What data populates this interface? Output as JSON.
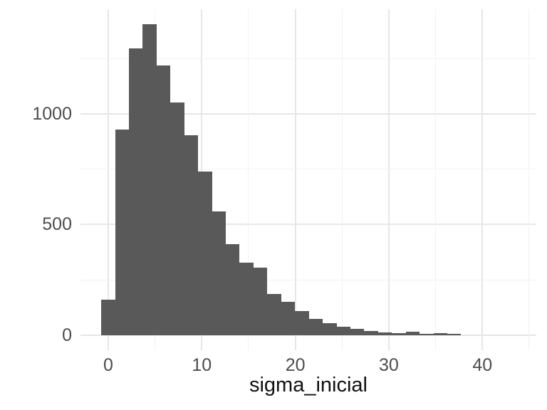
{
  "chart_data": {
    "type": "bar",
    "subtype": "histogram",
    "title": "",
    "xlabel": "sigma_inicial",
    "ylabel": "",
    "legend": "none",
    "grid": "on",
    "bar_color": "#595959",
    "background_color": "#ffffff",
    "grid_major_color": "#e6e6e6",
    "grid_minor_color": "#f2f2f2",
    "axis_text_color": "#4d4d4d",
    "axis_title_color": "#111111",
    "x_tick_labels": [
      "0",
      "10",
      "20",
      "30",
      "40"
    ],
    "x_ticks": [
      0,
      10,
      20,
      30,
      40
    ],
    "x_minor_ticks": [
      5,
      15,
      25,
      35,
      45
    ],
    "y_tick_labels": [
      "0",
      "500",
      "1000"
    ],
    "y_ticks": [
      0,
      500,
      1000
    ],
    "y_minor_ticks": [
      250,
      750,
      1250
    ],
    "x_range": [
      -2.97,
      45.77
    ],
    "y_range": [
      -68,
      1473
    ],
    "bin_start": -0.75,
    "bin_width": 1.48,
    "counts": [
      160,
      930,
      1295,
      1405,
      1220,
      1050,
      905,
      740,
      558,
      410,
      327,
      305,
      186,
      150,
      108,
      74,
      54,
      38,
      28,
      18,
      12,
      8,
      17,
      6,
      9,
      5
    ]
  }
}
